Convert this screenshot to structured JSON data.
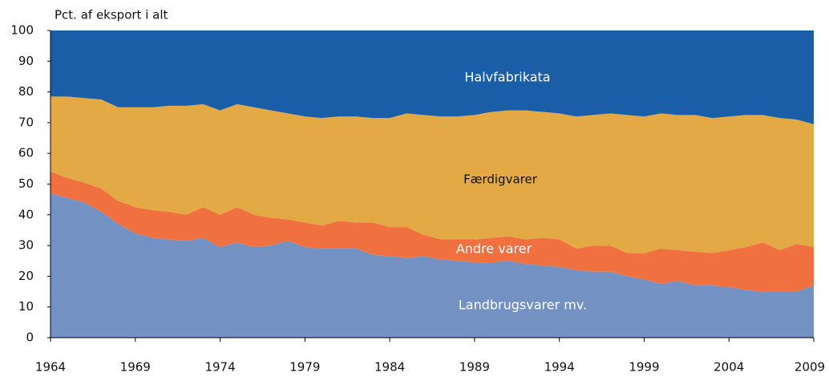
{
  "chart_data": {
    "type": "stacked_area",
    "ylabel": "Pct. af eksport i alt",
    "x": [
      1964,
      1965,
      1966,
      1967,
      1968,
      1969,
      1970,
      1971,
      1972,
      1973,
      1974,
      1975,
      1976,
      1977,
      1978,
      1979,
      1980,
      1981,
      1982,
      1983,
      1984,
      1985,
      1986,
      1987,
      1988,
      1989,
      1990,
      1991,
      1992,
      1993,
      1994,
      1995,
      1996,
      1997,
      1998,
      1999,
      2000,
      2001,
      2002,
      2003,
      2004,
      2005,
      2006,
      2007,
      2008,
      2009
    ],
    "xlim": [
      1964,
      2009
    ],
    "xticks": [
      1964,
      1969,
      1974,
      1979,
      1984,
      1989,
      1994,
      1999,
      2004,
      2009
    ],
    "ylim": [
      0,
      100
    ],
    "yticks": [
      0,
      10,
      20,
      30,
      40,
      50,
      60,
      70,
      80,
      90,
      100
    ],
    "grid": false,
    "series": [
      {
        "name": "Landbrugsvarer mv.",
        "color": "#7392c3",
        "values": [
          47,
          45.5,
          44,
          41,
          37,
          34,
          32.5,
          32,
          31.5,
          32.5,
          29.5,
          31,
          29.5,
          30,
          31.5,
          29.5,
          29,
          29,
          29,
          27,
          26.5,
          26,
          26.5,
          25.5,
          25,
          24.5,
          24.5,
          25,
          24,
          23.5,
          23,
          22,
          21.5,
          21.5,
          20,
          19,
          17.5,
          18.5,
          17,
          17,
          16.5,
          15.5,
          15,
          15,
          15,
          17
        ]
      },
      {
        "name": "Andre varer",
        "color": "#f07040",
        "values": [
          7,
          6.5,
          6.5,
          7.5,
          7.5,
          8.5,
          9,
          9,
          8.5,
          10,
          10.5,
          11.5,
          10.5,
          9,
          7,
          8,
          7.5,
          9,
          8.5,
          10.5,
          9.5,
          10,
          7,
          6.5,
          7,
          7.5,
          8,
          8,
          8,
          9,
          9,
          7,
          8.5,
          8.5,
          7.5,
          8.5,
          11.5,
          10,
          11,
          10.5,
          12,
          14,
          16,
          13.5,
          15.5,
          12.5
        ]
      },
      {
        "name": "Færdigvarer",
        "color": "#e3a945",
        "values": [
          24.5,
          26.5,
          27.5,
          29,
          30.5,
          32.5,
          33.5,
          34.5,
          35.5,
          33.5,
          34,
          33.5,
          35,
          35,
          34.5,
          34.5,
          35,
          34,
          34.5,
          34,
          35.5,
          37,
          39,
          40,
          40,
          40.5,
          41,
          41,
          42,
          41,
          41,
          43,
          42.5,
          43,
          45,
          44.5,
          44,
          44,
          44.5,
          44,
          43.5,
          43,
          41.5,
          43,
          40.5,
          40
        ]
      },
      {
        "name": "Halvfabrikata",
        "color": "#1a5ea8",
        "values": [
          21.5,
          21.5,
          22,
          22.5,
          25,
          25,
          25,
          24.5,
          24.5,
          24,
          26,
          24,
          25,
          26,
          27,
          28,
          28.5,
          28,
          28,
          28.5,
          28.5,
          27,
          27.5,
          28,
          28,
          27.5,
          26.5,
          26,
          26,
          26.5,
          27,
          28,
          27.5,
          27,
          27.5,
          28,
          27,
          27.5,
          27.5,
          28.5,
          28,
          27.5,
          27.5,
          28.5,
          29,
          30.5
        ]
      }
    ]
  }
}
